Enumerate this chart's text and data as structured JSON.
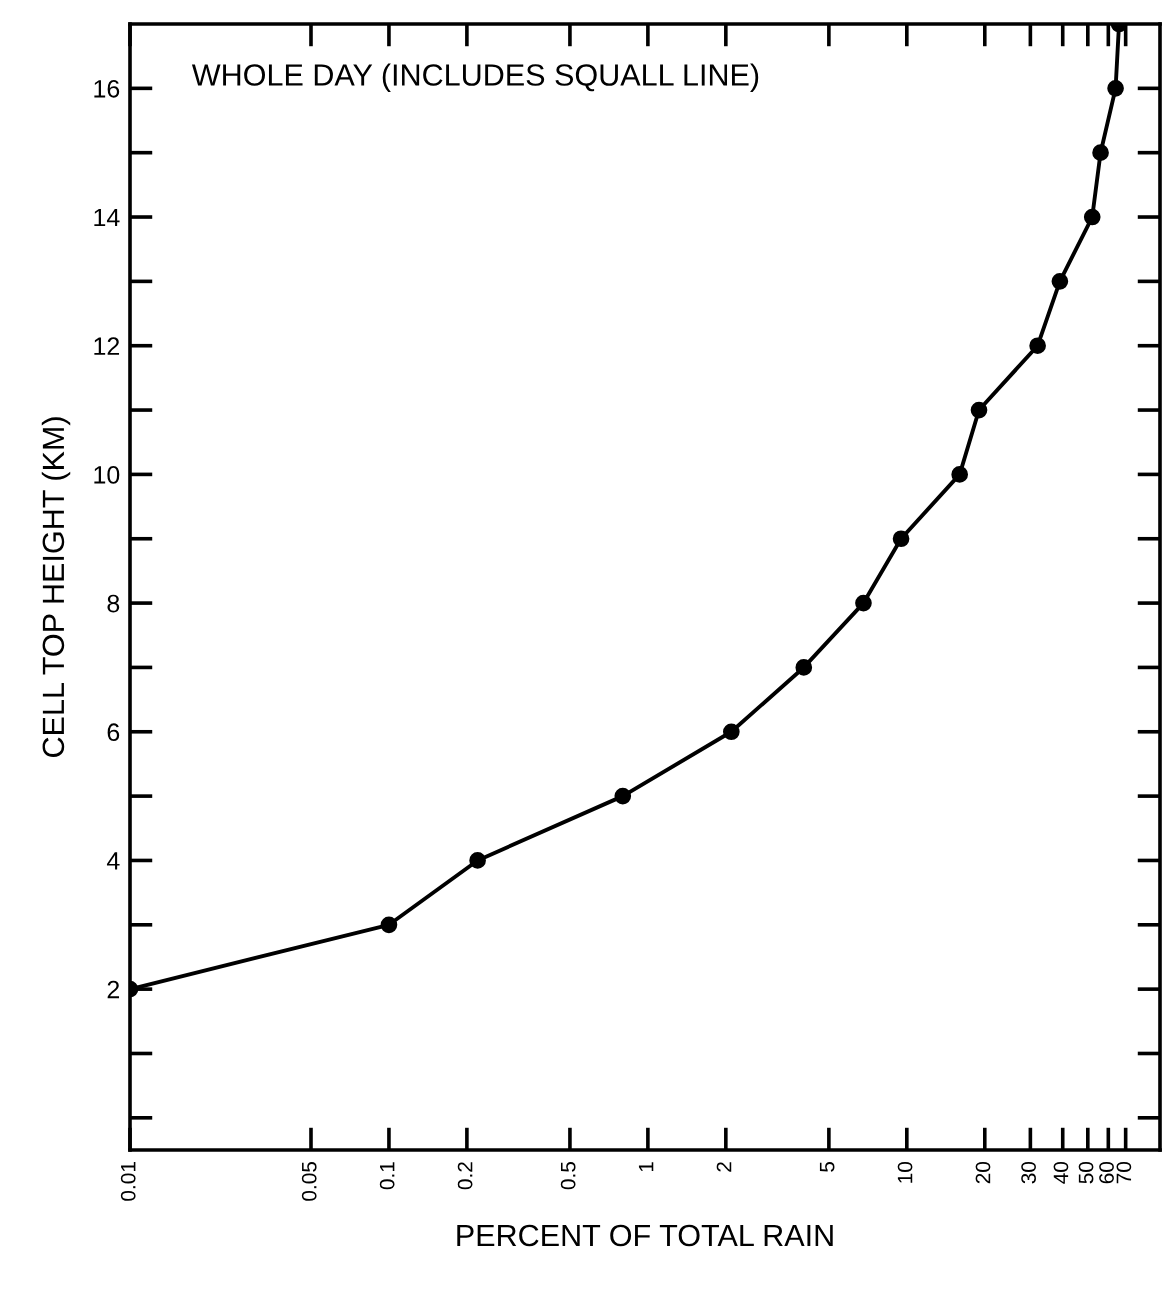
{
  "chart_data": {
    "type": "line",
    "title": "WHOLE DAY (INCLUDES SQUALL LINE)",
    "xlabel": "PERCENT OF TOTAL RAIN",
    "ylabel": "CELL TOP HEIGHT (KM)",
    "log": "x",
    "series": [
      {
        "color": "#000000",
        "x": [
          0.01,
          0.1,
          0.22,
          0.8,
          2.1,
          4,
          6.8,
          9.5,
          16,
          19,
          32,
          39,
          52,
          56,
          64,
          66
        ],
        "values": [
          2,
          3,
          4,
          5,
          6,
          7,
          8,
          9,
          10,
          11,
          12,
          13,
          14,
          15,
          16,
          17
        ]
      }
    ],
    "marker": "circle",
    "line_style": "solid",
    "xlim": [
      0.01,
      95
    ],
    "ylim": [
      -0.5,
      17
    ],
    "xticks": [
      0.01,
      0.05,
      0.1,
      0.2,
      0.5,
      1,
      2,
      5,
      10,
      20,
      30,
      40,
      50,
      60,
      70
    ],
    "yticks": [
      {
        "value": 0,
        "label": null
      },
      {
        "value": 1,
        "label": null
      },
      2,
      {
        "value": 3,
        "label": null
      },
      4,
      {
        "value": 5,
        "label": null
      },
      6,
      {
        "value": 7,
        "label": null
      },
      8,
      {
        "value": 9,
        "label": null
      },
      10,
      {
        "value": 11,
        "label": null
      },
      12,
      {
        "value": 13,
        "label": null
      },
      14,
      {
        "value": 15,
        "label": null
      },
      16
    ],
    "grid": false,
    "legend": false
  }
}
